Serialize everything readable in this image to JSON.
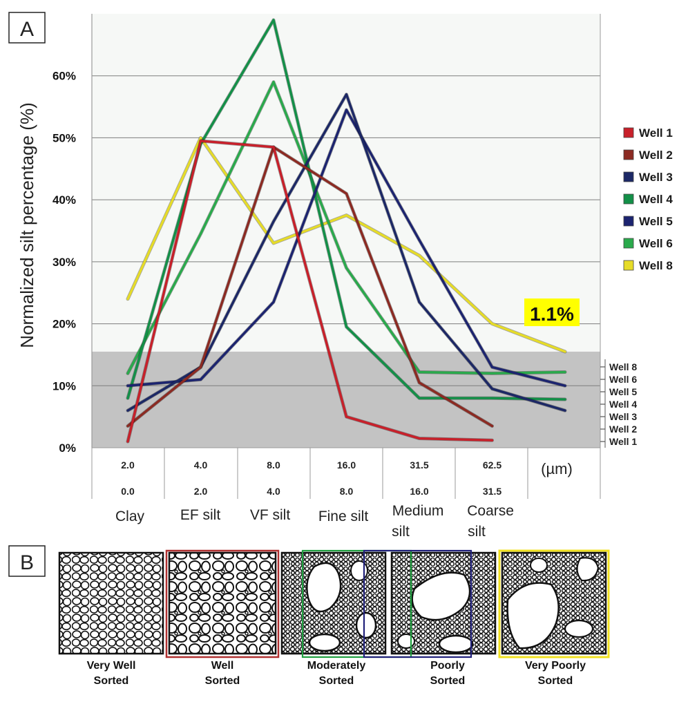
{
  "panels": {
    "a": "A",
    "b": "B"
  },
  "chart_data": {
    "type": "line",
    "title": "",
    "ylabel": "Normalized silt percentage (%)",
    "ylim": [
      0,
      0.7
    ],
    "yticks": [
      {
        "v": 0.0,
        "label": "0%"
      },
      {
        "v": 0.1,
        "label": "10%"
      },
      {
        "v": 0.2,
        "label": "20%"
      },
      {
        "v": 0.3,
        "label": "30%"
      },
      {
        "v": 0.4,
        "label": "40%"
      },
      {
        "v": 0.5,
        "label": "50%"
      },
      {
        "v": 0.6,
        "label": "60%"
      }
    ],
    "x_index": [
      0,
      1,
      2,
      3,
      4,
      5,
      6
    ],
    "x_row1": [
      "2.0",
      "4.0",
      "8.0",
      "16.0",
      "31.5",
      "62.5"
    ],
    "x_row2": [
      "0.0",
      "2.0",
      "4.0",
      "8.0",
      "16.0",
      "31.5"
    ],
    "x_unit": "(µm)",
    "categories": [
      "Clay",
      "EF silt",
      "VF silt",
      "Fine silt",
      "Medium silt",
      "Coarse silt"
    ],
    "shaded_threshold": 0.155,
    "annotation": "1.1%",
    "series": [
      {
        "name": "Well 1",
        "color": "#c8202a",
        "x": [
          0,
          1,
          2,
          3,
          4,
          5
        ],
        "values": [
          0.01,
          0.495,
          0.485,
          0.05,
          0.015,
          0.012
        ]
      },
      {
        "name": "Well 2",
        "color": "#8c2a22",
        "x": [
          0,
          1,
          2,
          3,
          4,
          5
        ],
        "values": [
          0.035,
          0.13,
          0.485,
          0.41,
          0.105,
          0.035
        ]
      },
      {
        "name": "Well 3",
        "color": "#1c2866",
        "x": [
          0,
          1,
          2,
          3,
          4,
          5,
          6
        ],
        "values": [
          0.06,
          0.13,
          0.365,
          0.57,
          0.235,
          0.095,
          0.06
        ]
      },
      {
        "name": "Well 4",
        "color": "#139048",
        "x": [
          0,
          1,
          2,
          3,
          4,
          5,
          6
        ],
        "values": [
          0.08,
          0.49,
          0.69,
          0.195,
          0.08,
          0.08,
          0.078
        ]
      },
      {
        "name": "Well 5",
        "color": "#1c2470",
        "x": [
          0,
          1,
          2,
          3,
          4,
          5,
          6
        ],
        "values": [
          0.1,
          0.11,
          0.235,
          0.545,
          0.335,
          0.13,
          0.1
        ]
      },
      {
        "name": "Well 6",
        "color": "#2aaa4c",
        "x": [
          0,
          1,
          2,
          3,
          4,
          5,
          6
        ],
        "values": [
          0.12,
          0.345,
          0.59,
          0.29,
          0.122,
          0.12,
          0.122
        ]
      },
      {
        "name": "Well 8",
        "color": "#e6dc28",
        "x": [
          0,
          1,
          2,
          3,
          4,
          5,
          6
        ],
        "values": [
          0.24,
          0.5,
          0.33,
          0.375,
          0.31,
          0.2,
          0.155
        ]
      }
    ],
    "right_labels": [
      "Well 8",
      "Well 6",
      "Well 5",
      "Well 4",
      "Well 3",
      "Well 2",
      "Well 1"
    ]
  },
  "sorting": [
    {
      "line1": "Very Well",
      "line2": "Sorted"
    },
    {
      "line1": "Well",
      "line2": "Sorted"
    },
    {
      "line1": "Moderately",
      "line2": "Sorted"
    },
    {
      "line1": "Poorly",
      "line2": "Sorted"
    },
    {
      "line1": "Very Poorly",
      "line2": "Sorted"
    }
  ],
  "colors": {
    "red": "#b03030",
    "green": "#20a040",
    "navy": "#20207a",
    "yellow": "#f0e020"
  }
}
